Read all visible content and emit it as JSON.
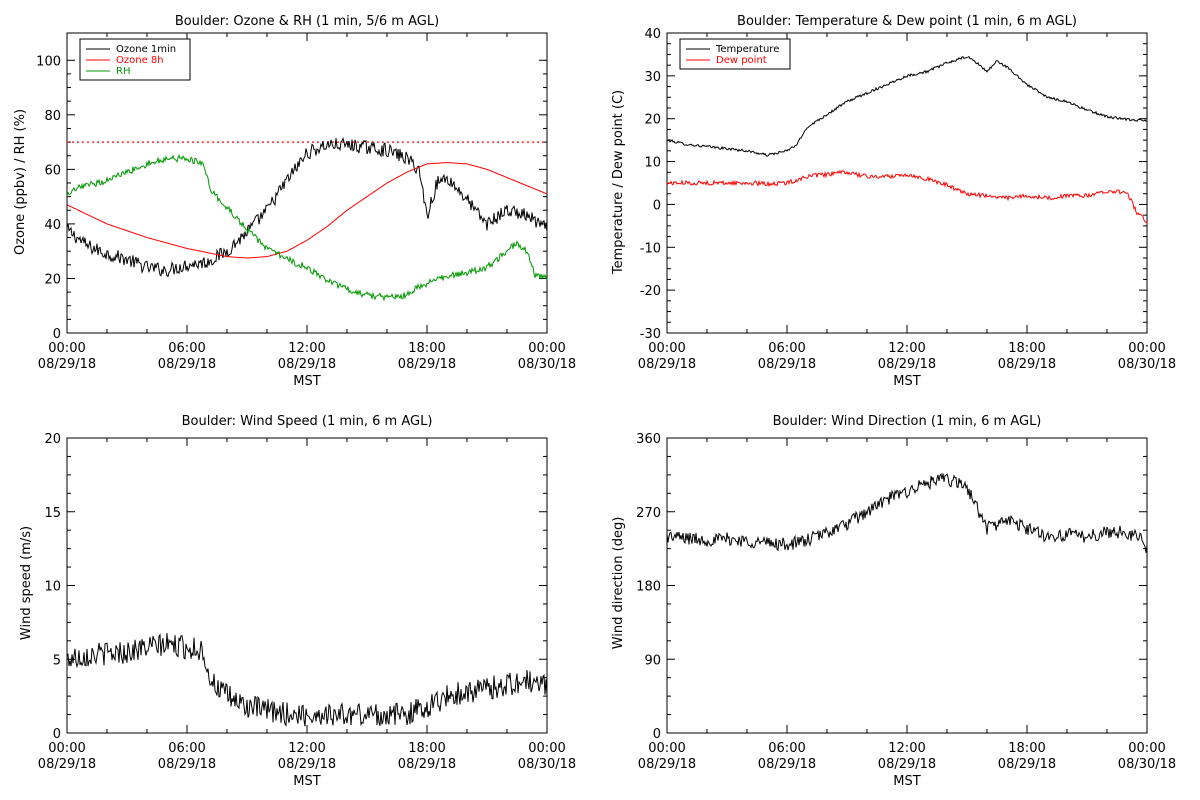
{
  "chart_data": [
    {
      "type": "line",
      "title": "Boulder: Ozone & RH (1 min, 5/6 m AGL)",
      "xlabel": "MST",
      "ylabel": "Ozone (ppbv) / RH (%)",
      "ylim": [
        0,
        110
      ],
      "yticks": [
        0,
        20,
        40,
        60,
        80,
        100
      ],
      "xlim_hours": [
        0,
        24
      ],
      "xtick_times": [
        "00:00",
        "06:00",
        "12:00",
        "18:00",
        "00:00"
      ],
      "xtick_dates": [
        "08/29/18",
        "08/29/18",
        "08/29/18",
        "08/29/18",
        "08/30/18"
      ],
      "legend_position": "top-left",
      "reference_line": {
        "y": 70,
        "color": "#ff0000",
        "style": "dotted"
      },
      "series": [
        {
          "name": "Ozone 1min",
          "color": "#000000",
          "noise": 2.5,
          "x": [
            0,
            1,
            2,
            3,
            4,
            5,
            6,
            7,
            8,
            9,
            10,
            11,
            12,
            13,
            14,
            15,
            16,
            17,
            17.6,
            18,
            18.5,
            19,
            19.5,
            20,
            20.5,
            21,
            22,
            23,
            24
          ],
          "y": [
            38,
            32,
            29,
            27,
            24,
            23,
            25,
            26,
            30,
            37,
            45,
            56,
            66,
            69,
            69,
            68,
            67,
            64,
            60,
            43,
            55,
            57,
            53,
            49,
            44,
            40,
            45,
            43,
            38
          ]
        },
        {
          "name": "Ozone 8h",
          "color": "#ff0000",
          "noise": 0,
          "x": [
            0,
            2,
            4,
            6,
            8,
            9,
            10,
            11,
            12,
            13,
            14,
            15,
            16,
            17,
            18,
            19,
            20,
            21,
            22,
            23,
            24
          ],
          "y": [
            47,
            40,
            35,
            31,
            28,
            27.5,
            28,
            30,
            34,
            39,
            45,
            50,
            55,
            59,
            62,
            62.5,
            62,
            60,
            57,
            54,
            51
          ]
        },
        {
          "name": "RH",
          "color": "#009900",
          "noise": 1.2,
          "x": [
            0,
            0.5,
            1,
            2,
            3,
            4,
            5,
            6,
            6.8,
            7.2,
            8,
            9,
            10,
            11,
            12,
            13,
            14,
            15,
            16,
            17,
            17.5,
            18,
            19,
            20,
            21,
            22,
            22.5,
            23,
            23.4,
            24
          ],
          "y": [
            50,
            53,
            54,
            56,
            59,
            62,
            64,
            64,
            62,
            52,
            46,
            38,
            31,
            27,
            24,
            19,
            16,
            14,
            13,
            14,
            17,
            18,
            21,
            22,
            24,
            30,
            33,
            30,
            21,
            20
          ]
        }
      ]
    },
    {
      "type": "line",
      "title": "Boulder: Temperature & Dew point (1 min, 6 m AGL)",
      "xlabel": "MST",
      "ylabel": "Temperature / Dew point (C)",
      "ylim": [
        -30,
        40
      ],
      "yticks": [
        -30,
        -20,
        -10,
        0,
        10,
        20,
        30,
        40
      ],
      "xlim_hours": [
        0,
        24
      ],
      "xtick_times": [
        "00:00",
        "06:00",
        "12:00",
        "18:00",
        "00:00"
      ],
      "xtick_dates": [
        "08/29/18",
        "08/29/18",
        "08/29/18",
        "08/29/18",
        "08/30/18"
      ],
      "legend_position": "top-left",
      "series": [
        {
          "name": "Temperature",
          "color": "#000000",
          "noise": 0.3,
          "x": [
            0,
            1,
            2,
            3,
            4,
            5,
            6,
            6.5,
            7,
            8,
            9,
            10,
            11,
            12,
            13,
            14,
            15,
            15.5,
            16,
            16.5,
            17,
            18,
            19,
            20,
            21,
            22,
            23,
            24
          ],
          "y": [
            15,
            14,
            13.5,
            13,
            12.5,
            11.5,
            12.5,
            14,
            18,
            21,
            24,
            26,
            28,
            30,
            31,
            33,
            34.5,
            33,
            31,
            33.5,
            32,
            28,
            25,
            24,
            22,
            20.5,
            19.8,
            19.5
          ]
        },
        {
          "name": "Dew point",
          "color": "#ff0000",
          "noise": 0.5,
          "x": [
            0,
            2,
            4,
            5,
            6,
            7,
            8,
            9,
            10,
            11,
            12,
            13,
            14,
            15,
            16,
            17,
            18,
            19,
            20,
            21,
            22,
            23,
            23.5,
            24
          ],
          "y": [
            5,
            5,
            5,
            4.8,
            5,
            6.5,
            7,
            7.5,
            6.5,
            6.5,
            7,
            6,
            4.5,
            2.5,
            2,
            1.5,
            2,
            1.5,
            2,
            2,
            3,
            3,
            -2,
            -4
          ]
        }
      ]
    },
    {
      "type": "line",
      "title": "Boulder: Wind Speed (1 min, 6 m AGL)",
      "xlabel": "MST",
      "ylabel": "Wind speed (m/s)",
      "ylim": [
        0,
        20
      ],
      "yticks": [
        0,
        5,
        10,
        15,
        20
      ],
      "xlim_hours": [
        0,
        24
      ],
      "xtick_times": [
        "00:00",
        "06:00",
        "12:00",
        "18:00",
        "00:00"
      ],
      "xtick_dates": [
        "08/29/18",
        "08/29/18",
        "08/29/18",
        "08/29/18",
        "08/30/18"
      ],
      "series": [
        {
          "name": "",
          "color": "#000000",
          "noise": 0.8,
          "x": [
            0,
            1,
            2,
            3,
            4,
            5,
            6,
            6.8,
            7.2,
            8,
            9,
            10,
            11,
            12,
            13,
            14,
            15,
            16,
            17,
            18,
            19,
            20,
            21,
            22,
            23,
            24
          ],
          "y": [
            5,
            5.3,
            5.4,
            5.5,
            5.8,
            6,
            5.8,
            5.6,
            3.5,
            2.5,
            1.8,
            1.5,
            1.3,
            1.2,
            1.3,
            1.2,
            1.3,
            1.2,
            1.3,
            1.8,
            2.5,
            2.8,
            3,
            3.3,
            3.5,
            3.2
          ]
        }
      ]
    },
    {
      "type": "line",
      "title": "Boulder: Wind Direction (1 min, 6 m AGL)",
      "xlabel": "MST",
      "ylabel": "Wind direction (deg)",
      "ylim": [
        0,
        360
      ],
      "yticks": [
        0,
        90,
        180,
        270,
        360
      ],
      "xlim_hours": [
        0,
        24
      ],
      "xtick_times": [
        "00:00",
        "06:00",
        "12:00",
        "18:00",
        "00:00"
      ],
      "xtick_dates": [
        "08/29/18",
        "08/29/18",
        "08/29/18",
        "08/29/18",
        "08/30/18"
      ],
      "series": [
        {
          "name": "",
          "color": "#000000",
          "noise": 8,
          "x": [
            0,
            1,
            2,
            3,
            4,
            5,
            6,
            7,
            8,
            9,
            10,
            11,
            12,
            13,
            14,
            15,
            16,
            17,
            18,
            19,
            20,
            21,
            22,
            23,
            23.8,
            24
          ],
          "y": [
            240,
            238,
            235,
            237,
            234,
            232,
            230,
            235,
            245,
            255,
            270,
            285,
            295,
            305,
            310,
            300,
            250,
            260,
            250,
            240,
            242,
            240,
            245,
            245,
            235,
            222
          ]
        }
      ]
    }
  ]
}
